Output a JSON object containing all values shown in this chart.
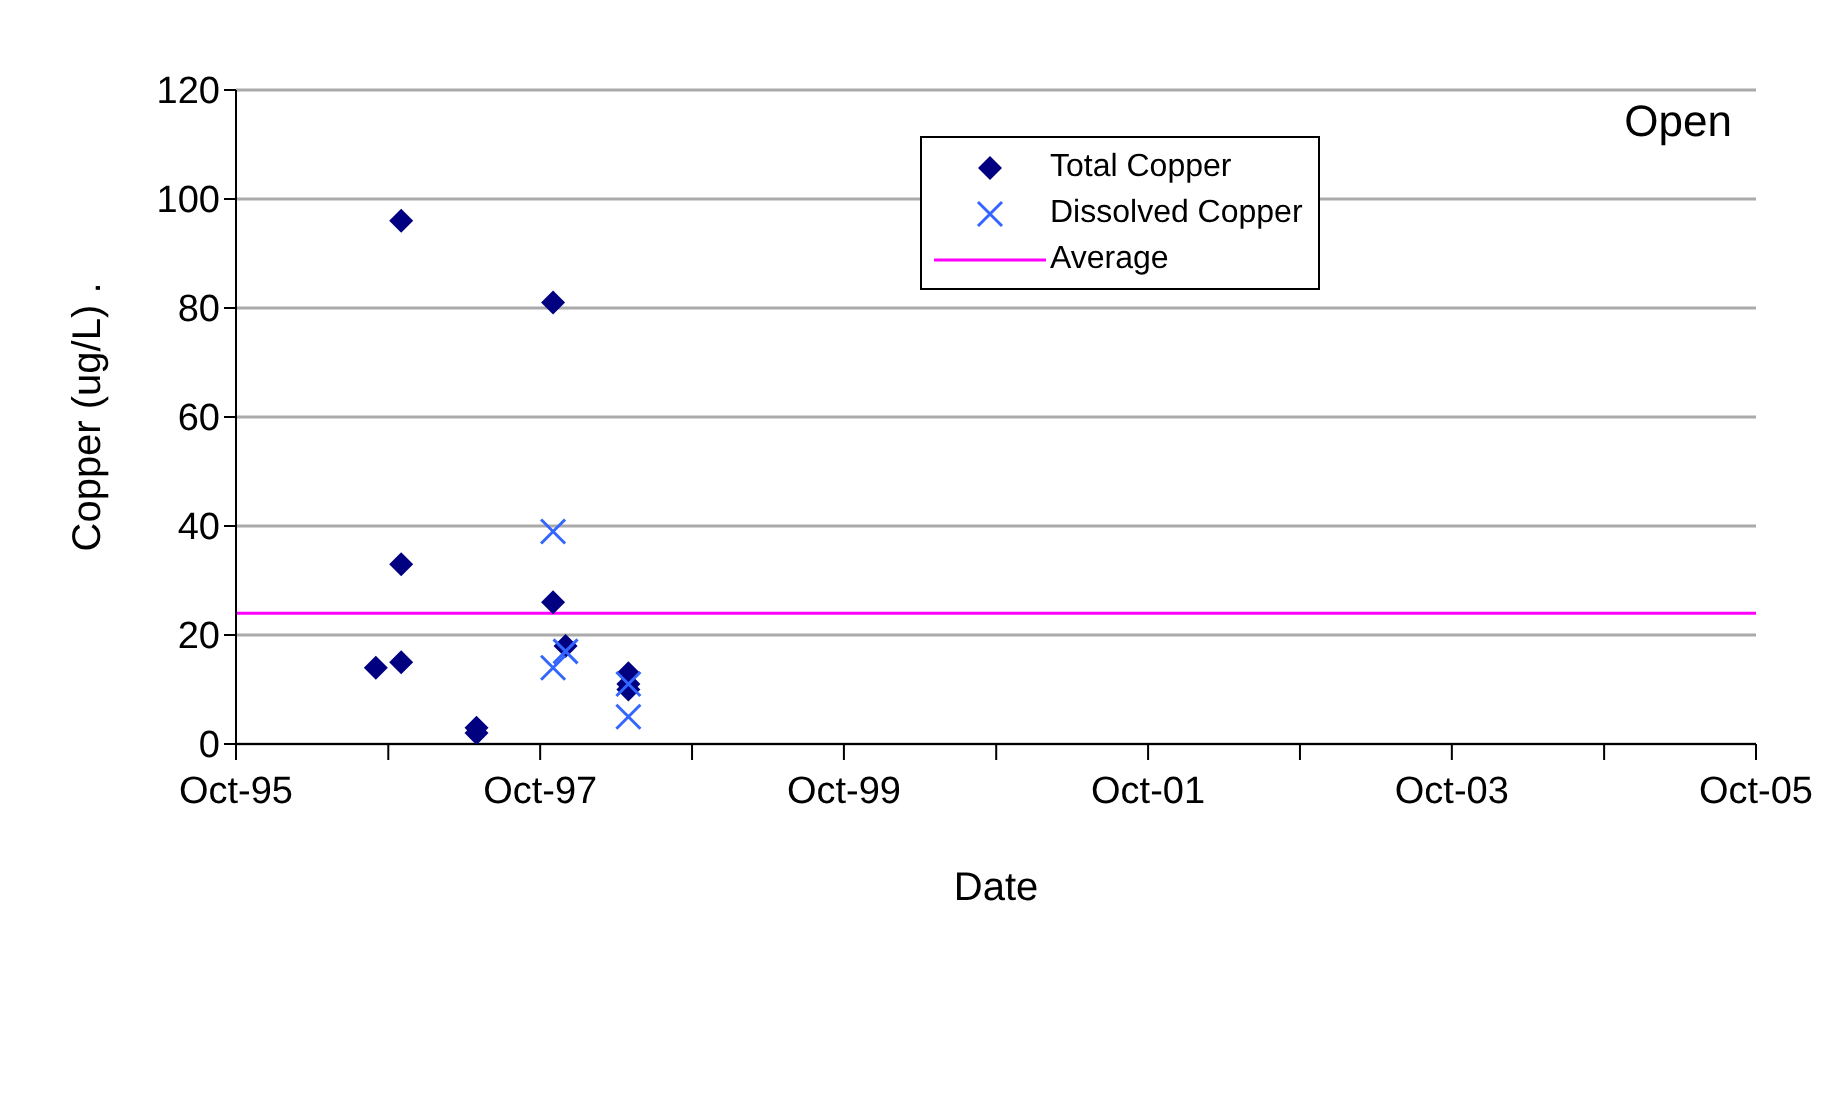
{
  "chart_data": {
    "type": "scatter",
    "title": "Open",
    "xlabel": "Date",
    "ylabel": "Copper (ug/L)      .",
    "xlim": [
      "1995-10",
      "2005-10"
    ],
    "xticks": [
      {
        "value": "1995-10",
        "label": "Oct-95"
      },
      {
        "value": "1996-10",
        "label": null
      },
      {
        "value": "1997-10",
        "label": "Oct-97"
      },
      {
        "value": "1998-10",
        "label": null
      },
      {
        "value": "1999-10",
        "label": "Oct-99"
      },
      {
        "value": "2000-10",
        "label": null
      },
      {
        "value": "2001-10",
        "label": "Oct-01"
      },
      {
        "value": "2002-10",
        "label": null
      },
      {
        "value": "2003-10",
        "label": "Oct-03"
      },
      {
        "value": "2004-10",
        "label": null
      },
      {
        "value": "2005-10",
        "label": "Oct-05"
      }
    ],
    "ylim": [
      0,
      120
    ],
    "yticks": [
      0,
      20,
      40,
      60,
      80,
      100,
      120
    ],
    "grid": "y",
    "legend": "top right",
    "series": [
      {
        "name": "Total Copper",
        "color": "#000080",
        "marker": "diamond",
        "x": [
          "1996-09",
          "1996-11",
          "1996-11",
          "1996-11",
          "1997-05",
          "1997-05",
          "1997-11",
          "1997-11",
          "1997-12",
          "1998-05",
          "1998-05",
          "1998-05"
        ],
        "values": [
          14,
          96,
          33,
          15,
          3,
          2,
          81,
          26,
          18,
          13,
          11,
          10
        ]
      },
      {
        "name": "Dissolved Copper",
        "color": "#3366ff",
        "marker": "cross",
        "x": [
          "1997-11",
          "1997-11",
          "1997-12",
          "1998-05",
          "1998-05"
        ],
        "values": [
          39,
          14,
          17,
          11,
          5
        ]
      },
      {
        "name": "Average",
        "type": "line",
        "color": "#ff00ff",
        "marker": "none",
        "x": [
          "1995-10",
          "2005-10"
        ],
        "values": [
          24,
          24
        ]
      }
    ]
  }
}
